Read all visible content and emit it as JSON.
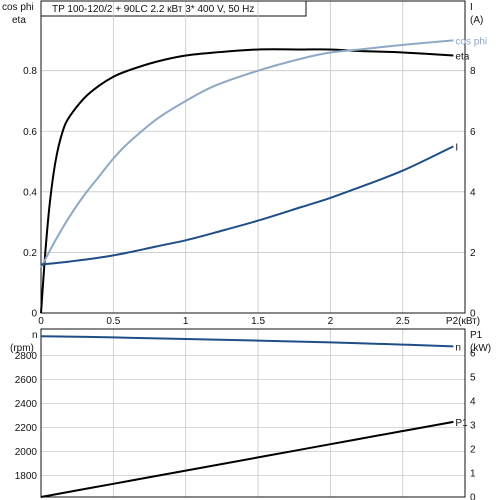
{
  "title": "TP 100-120/2 + 90LC    2.2 кВт   3* 400 V, 50 Hz",
  "colors": {
    "eta": "#000000",
    "cosphi": "#8fa8c4",
    "current": "#1f4e86",
    "speed": "#1f4e86",
    "power": "#000000",
    "grid": "#c8c8c8"
  },
  "chart_data": [
    {
      "type": "line",
      "x_label": "P2(кВт)",
      "x_range": [
        0,
        2.93
      ],
      "x_ticks": [
        "0",
        "0.5",
        "1",
        "1.5",
        "2",
        "2.5",
        "P2(кВт)"
      ],
      "x_tick_values": [
        0,
        0.5,
        1,
        1.5,
        2,
        2.5
      ],
      "left_axis": {
        "labels": [
          "cos phi",
          "eta"
        ],
        "range": [
          0,
          1.03
        ],
        "ticks": [
          "0",
          "0.2",
          "0.4",
          "0.6",
          "0.8"
        ],
        "tick_values": [
          0,
          0.2,
          0.4,
          0.6,
          0.8
        ]
      },
      "right_axis": {
        "labels": [
          "I",
          "(A)"
        ],
        "range": [
          0,
          10.3
        ],
        "ticks": [
          "0",
          "2",
          "4",
          "6",
          "8"
        ],
        "tick_values": [
          0,
          2,
          4,
          6,
          8
        ]
      },
      "series": [
        {
          "name": "eta",
          "axis": "left",
          "color": "#000000",
          "x": [
            0,
            0.03,
            0.06,
            0.1,
            0.15,
            0.2,
            0.3,
            0.4,
            0.5,
            0.6,
            0.8,
            1.0,
            1.2,
            1.5,
            1.8,
            2.0,
            2.2,
            2.5,
            2.85
          ],
          "y": [
            0.0,
            0.2,
            0.36,
            0.5,
            0.6,
            0.65,
            0.71,
            0.75,
            0.78,
            0.8,
            0.83,
            0.85,
            0.86,
            0.87,
            0.87,
            0.87,
            0.865,
            0.86,
            0.85
          ]
        },
        {
          "name": "cos phi",
          "axis": "left",
          "color": "#8fa8c4",
          "x": [
            0,
            0.1,
            0.2,
            0.3,
            0.4,
            0.5,
            0.6,
            0.8,
            1.0,
            1.2,
            1.5,
            1.8,
            2.0,
            2.2,
            2.5,
            2.85
          ],
          "y": [
            0.15,
            0.24,
            0.32,
            0.39,
            0.45,
            0.51,
            0.56,
            0.64,
            0.7,
            0.75,
            0.8,
            0.84,
            0.86,
            0.87,
            0.885,
            0.9
          ]
        },
        {
          "name": "I",
          "axis": "right",
          "color": "#1f4e86",
          "x": [
            0,
            0.2,
            0.5,
            0.8,
            1.0,
            1.2,
            1.5,
            1.8,
            2.0,
            2.2,
            2.5,
            2.85
          ],
          "y": [
            1.6,
            1.7,
            1.9,
            2.2,
            2.4,
            2.65,
            3.05,
            3.5,
            3.8,
            4.15,
            4.7,
            5.5
          ]
        }
      ]
    },
    {
      "type": "line",
      "x_range": [
        0,
        2.93
      ],
      "x_tick_values": [
        0,
        0.5,
        1,
        1.5,
        2,
        2.5
      ],
      "left_axis": {
        "labels": [
          "n",
          "(rpm)"
        ],
        "range": [
          1620,
          3020
        ],
        "ticks": [
          "2800",
          "2600",
          "2400",
          "2200",
          "2000",
          "1800"
        ],
        "tick_values": [
          2800,
          2600,
          2400,
          2200,
          2000,
          1800
        ]
      },
      "right_axis": {
        "labels": [
          "P1",
          "(kW)"
        ],
        "range": [
          0,
          7
        ],
        "ticks": [
          "6",
          "5",
          "4",
          "3",
          "2",
          "1",
          "0"
        ],
        "tick_values": [
          6,
          5,
          4,
          3,
          2,
          1,
          0
        ]
      },
      "series": [
        {
          "name": "n",
          "axis": "left",
          "color": "#1f4e86",
          "x": [
            0,
            0.5,
            1.0,
            1.5,
            2.0,
            2.5,
            2.85
          ],
          "y": [
            2960,
            2950,
            2937,
            2923,
            2908,
            2890,
            2875
          ]
        },
        {
          "name": "P1",
          "axis": "right",
          "color": "#000000",
          "x": [
            0,
            0.5,
            1.0,
            1.5,
            2.0,
            2.5,
            2.85
          ],
          "y": [
            0.0,
            0.55,
            1.1,
            1.65,
            2.2,
            2.75,
            3.13
          ]
        }
      ]
    }
  ]
}
